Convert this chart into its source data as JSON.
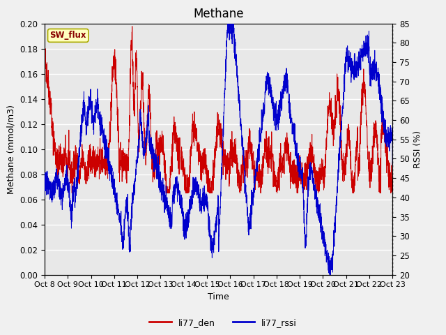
{
  "title": "Methane",
  "ylabel_left": "Methane (mmol/m3)",
  "ylabel_right": "RSSI (%)",
  "xlabel": "Time",
  "ylim_left": [
    0.0,
    0.2
  ],
  "ylim_right": [
    20,
    85
  ],
  "yticks_left": [
    0.0,
    0.02,
    0.04,
    0.06,
    0.08,
    0.1,
    0.12,
    0.14,
    0.16,
    0.18,
    0.2
  ],
  "yticks_right": [
    20,
    25,
    30,
    35,
    40,
    45,
    50,
    55,
    60,
    65,
    70,
    75,
    80,
    85
  ],
  "xtick_labels": [
    "Oct 8",
    "Oct 9",
    "Oct 10",
    "Oct 11",
    "Oct 12",
    "Oct 13",
    "Oct 14",
    "Oct 15",
    "Oct 16",
    "Oct 17",
    "Oct 18",
    "Oct 19",
    "Oct 20",
    "Oct 21",
    "Oct 22",
    "Oct 23"
  ],
  "color_red": "#CC0000",
  "color_blue": "#0000CC",
  "plot_bg": "#E8E8E8",
  "fig_bg": "#F0F0F0",
  "grid_color": "#FFFFFF",
  "legend_label_red": "li77_den",
  "legend_label_blue": "li77_rssi",
  "sw_flux_label": "SW_flux",
  "sw_flux_color": "#880000",
  "sw_flux_bg": "#FFFFC0",
  "sw_flux_border": "#AAAA00",
  "title_fontsize": 12,
  "axis_fontsize": 9,
  "tick_fontsize": 8.5
}
